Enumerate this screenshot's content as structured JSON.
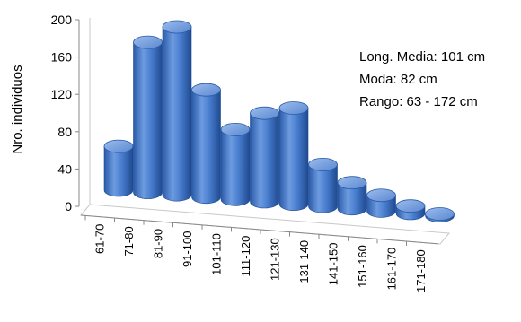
{
  "chart_data": {
    "type": "bar",
    "style": "3d-cylinder",
    "ylabel": "Nro. individuos",
    "xlabel": "",
    "ylim": [
      0,
      200
    ],
    "yticks": [
      0,
      40,
      80,
      120,
      160,
      200
    ],
    "grid": false,
    "categories": [
      "61-70",
      "71-80",
      "81-90",
      "91-100",
      "101-110",
      "111-120",
      "121-130",
      "131-140",
      "141-150",
      "151-160",
      "161-170",
      "171-180"
    ],
    "values": [
      47,
      161,
      180,
      115,
      75,
      95,
      103,
      45,
      28,
      17,
      8,
      2
    ],
    "bar_color": "#4a7fd0",
    "annotations": [
      "Long. Media: 101 cm",
      "Moda: 82 cm",
      "Rango: 63 - 172 cm"
    ]
  }
}
